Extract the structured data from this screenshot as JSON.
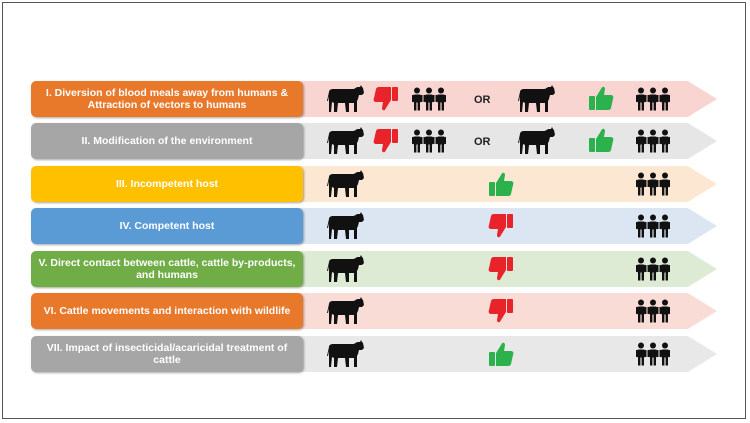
{
  "rows": [
    {
      "label": "I. Diversion of blood meals away from humans & Attraction of vectors to humans",
      "box_color": "#E8782A",
      "text_color": "#ffffff",
      "arrow_color": "#F9D5D2",
      "left_thumb": "thumbs-down",
      "or_text": "OR",
      "right_thumb": "thumbs-up"
    },
    {
      "label": "II. Modification of the environment",
      "box_color": "#A6A6A6",
      "text_color": "#ffffff",
      "arrow_color": "#E6E6E6",
      "left_thumb": "thumbs-down",
      "or_text": "OR",
      "right_thumb": "thumbs-up"
    },
    {
      "label": "III. Incompetent host",
      "box_color": "#FFC000",
      "text_color": "#ffffff",
      "arrow_color": "#FCE8D2",
      "center_thumb": "thumbs-up"
    },
    {
      "label": "IV. Competent host",
      "box_color": "#5B9BD5",
      "text_color": "#ffffff",
      "arrow_color": "#DCE6F2",
      "center_thumb": "thumbs-down"
    },
    {
      "label": "V. Direct contact between cattle, cattle by-products, and humans",
      "box_color": "#70AD47",
      "text_color": "#ffffff",
      "arrow_color": "#DDEBD5",
      "center_thumb": "thumbs-down"
    },
    {
      "label": "VI. Cattle movements and interaction with wildlife",
      "box_color": "#E8782A",
      "text_color": "#ffffff",
      "arrow_color": "#FADCD6",
      "center_thumb": "thumbs-down"
    },
    {
      "label": "VII. Impact of insecticidal/acaricidal treatment of cattle",
      "box_color": "#A6A6A6",
      "text_color": "#ffffff",
      "arrow_color": "#E8E8E8",
      "center_thumb": "thumbs-up"
    }
  ],
  "colors": {
    "thumbs_up": "#2BB24C",
    "thumbs_down": "#E8232A",
    "icon": "#111111"
  },
  "icons": {
    "cattle": "cow-icon",
    "humans": "people-icon"
  }
}
